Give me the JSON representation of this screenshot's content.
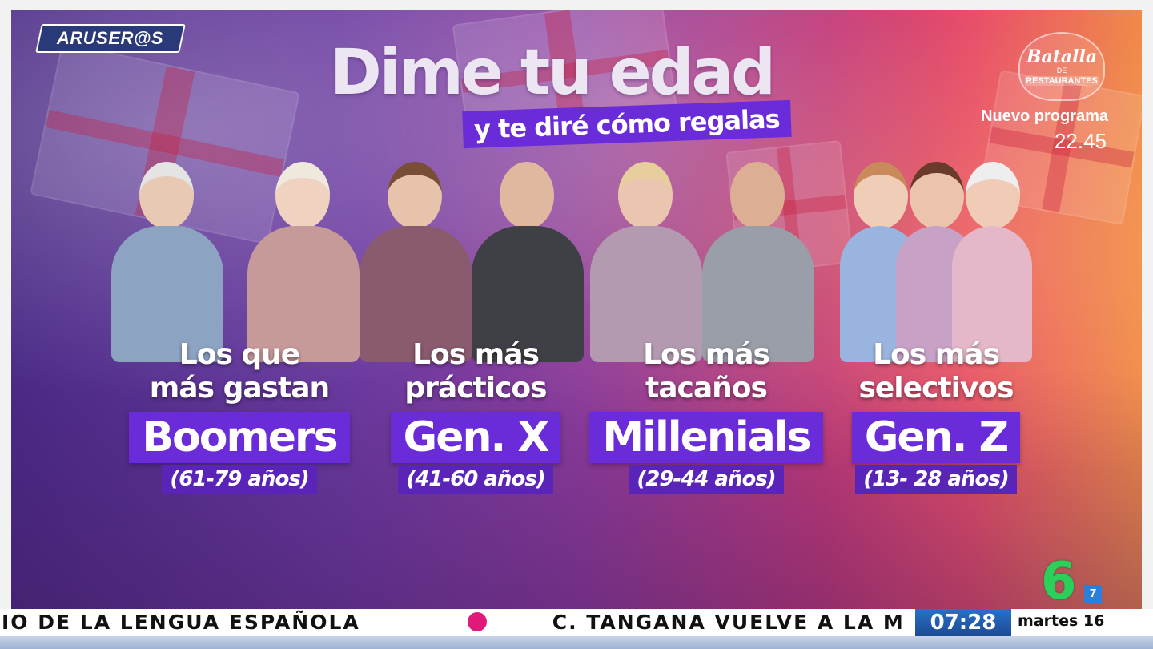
{
  "show_logo": "ARUSER@S",
  "title": {
    "main": "Dime tu edad",
    "sub": "y te diré cómo regalas"
  },
  "promo": {
    "logo_line1": "Batalla",
    "logo_line2": "DE",
    "logo_line3": "RESTAURANTES",
    "label": "Nuevo programa",
    "time": "22.45"
  },
  "groups": [
    {
      "lead1": "Los que",
      "lead2": "más gastan",
      "generation": "Boomers",
      "ages": "(61-79 años)"
    },
    {
      "lead1": "Los más",
      "lead2": "prácticos",
      "generation": "Gen. X",
      "ages": "(41-60 años)"
    },
    {
      "lead1": "Los más",
      "lead2": "tacaños",
      "generation": "Millenials",
      "ages": "(29-44 años)"
    },
    {
      "lead1": "Los más",
      "lead2": "selectivos",
      "generation": "Gen. Z",
      "ages": "(13- 28 años)"
    }
  ],
  "channel": {
    "number": "6",
    "sub": "7"
  },
  "ticker": {
    "left": "IO DE LA LENGUA ESPAÑOLA",
    "right": "C. TANGANA VUELVE A LA M"
  },
  "clock": "07:28",
  "date": "martes 16",
  "colors": {
    "accent_purple": "#6a2bd9",
    "channel_green": "#2bd05a",
    "ticker_dot": "#e0197a"
  }
}
